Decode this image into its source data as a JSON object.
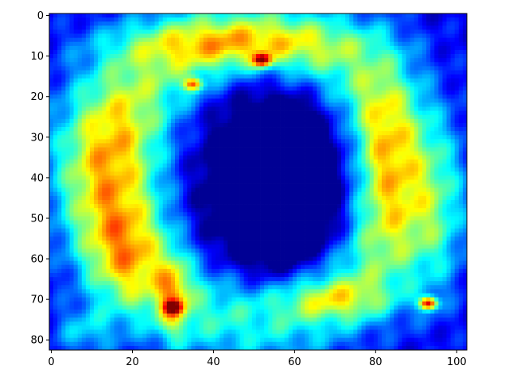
{
  "chart_data": {
    "type": "heatmap",
    "title": "",
    "xlabel": "",
    "ylabel": "",
    "colormap": "jet",
    "grid": false,
    "legend": "none",
    "image_columns": 103,
    "image_rows": 83,
    "xlim": [
      -0.5,
      102.5
    ],
    "ylim": [
      82.5,
      -0.5
    ],
    "x_ticks": [
      0,
      20,
      40,
      60,
      80,
      100
    ],
    "y_ticks": [
      0,
      10,
      20,
      30,
      40,
      50,
      60,
      70,
      80
    ],
    "x_tick_labels": [
      "0",
      "20",
      "40",
      "60",
      "80",
      "100"
    ],
    "y_tick_labels": [
      "0",
      "10",
      "20",
      "30",
      "40",
      "50",
      "60",
      "70",
      "80"
    ],
    "description_values": {
      "background_value": 0.1,
      "hot_spots": [
        {
          "x": 93,
          "y": 71,
          "value": 1.0
        },
        {
          "x": 52,
          "y": 11,
          "value": 0.85
        },
        {
          "x": 35,
          "y": 17,
          "value": 0.78
        },
        {
          "x": 30,
          "y": 72,
          "value": 0.72
        }
      ]
    }
  }
}
